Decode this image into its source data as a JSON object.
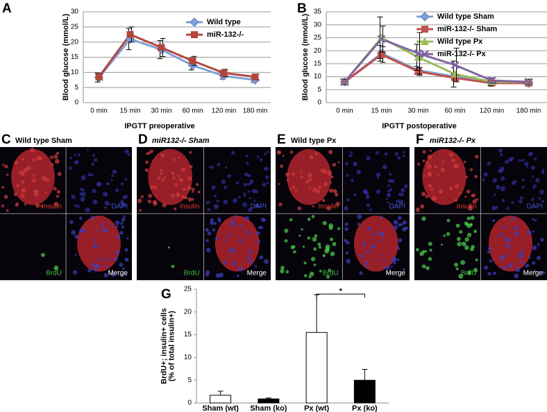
{
  "chart_data": [
    {
      "type": "line",
      "panel": "A",
      "ylabel": [
        "Blood glucose (mmol/L)"
      ],
      "xlabel": "IPGTT preoperative",
      "categories": [
        "0 min",
        "15 min",
        "30 min",
        "60 min",
        "120 min",
        "180 min"
      ],
      "ylim": [
        0,
        30
      ],
      "yticks": [
        0,
        5,
        10,
        15,
        20,
        25,
        30
      ],
      "grid": true,
      "series": [
        {
          "name": "Wild type",
          "color": "#7f9fd8",
          "marker": "diamond",
          "values": [
            8.3,
            21,
            17.5,
            12.3,
            8.8,
            7.5
          ],
          "errors": [
            1.5,
            3.5,
            3,
            1.5,
            1,
            0.8
          ]
        },
        {
          "name": "miR-132-/-",
          "color": "#b3463c",
          "marker": "square",
          "values": [
            8.5,
            22.5,
            18.2,
            13.8,
            9.8,
            8.5
          ],
          "errors": [
            1,
            2.5,
            3,
            1.5,
            1.2,
            1
          ]
        }
      ]
    },
    {
      "type": "line",
      "panel": "B",
      "ylabel": [
        "Blood glucose (mmol/L)"
      ],
      "xlabel": "IPGTT postoperative",
      "categories": [
        "0 min",
        "15 min",
        "30 min",
        "60 min",
        "120 min",
        "180 min"
      ],
      "ylim": [
        0,
        35
      ],
      "yticks": [
        0,
        5,
        10,
        15,
        20,
        25,
        30,
        35
      ],
      "grid": true,
      "series": [
        {
          "name": "Wild type Sham",
          "color": "#7f9fd8",
          "marker": "diamond",
          "values": [
            8,
            19,
            12.5,
            10,
            7.8,
            7.5
          ],
          "errors": [
            1,
            3,
            1.5,
            1,
            0.5,
            0.5
          ]
        },
        {
          "name": "miR-132-/- Sham",
          "color": "#c0504d",
          "marker": "square",
          "values": [
            8,
            18.5,
            12,
            9.5,
            7.5,
            7.5
          ],
          "errors": [
            1,
            3,
            1.5,
            1,
            0.5,
            0.5
          ]
        },
        {
          "name": "Wild type Px",
          "color": "#9bbb59",
          "marker": "triangle",
          "values": [
            8,
            25,
            17.5,
            11,
            8,
            8
          ],
          "errors": [
            1,
            8,
            5,
            5,
            1.5,
            1
          ]
        },
        {
          "name": "miR-132-/- Px",
          "color": "#8064a2",
          "marker": "x",
          "values": [
            8,
            24.5,
            19,
            14.5,
            8.5,
            8
          ],
          "errors": [
            1,
            5,
            8,
            6.5,
            1,
            1
          ]
        }
      ]
    },
    {
      "type": "bar",
      "panel": "G",
      "ylabel": [
        "BrdU+; insulin+ cells",
        "(% of total insulin+)"
      ],
      "categories": [
        "Sham (wt)",
        "Sham (ko)",
        "Px (wt)",
        "Px (ko)"
      ],
      "values": [
        1.7,
        0.9,
        15.5,
        5
      ],
      "errors": [
        0.9,
        0.2,
        8.3,
        2.4
      ],
      "colors": [
        "#ffffff",
        "#000000",
        "#ffffff",
        "#000000"
      ],
      "ylim": [
        0,
        25
      ],
      "yticks": [
        0,
        5,
        10,
        15,
        20,
        25
      ],
      "grid": false,
      "annotation": "*"
    }
  ],
  "image_panels": [
    {
      "letter": "C",
      "title": "Wild type Sham",
      "labels": [
        "Insulin",
        "DAPI",
        "BrdU",
        "Merge"
      ]
    },
    {
      "letter": "D",
      "title": "miR132-/- Sham",
      "labels": [
        "Insulin",
        "DAPI",
        "BrdU",
        "Merge"
      ]
    },
    {
      "letter": "E",
      "title": "Wild type Px",
      "labels": [
        "Insulin",
        "DAPI",
        "BrdU",
        "Merge"
      ]
    },
    {
      "letter": "F",
      "title": "miR132-/- Px",
      "labels": [
        "Insulin",
        "DAPI",
        "BrdU",
        "Merge"
      ]
    }
  ]
}
